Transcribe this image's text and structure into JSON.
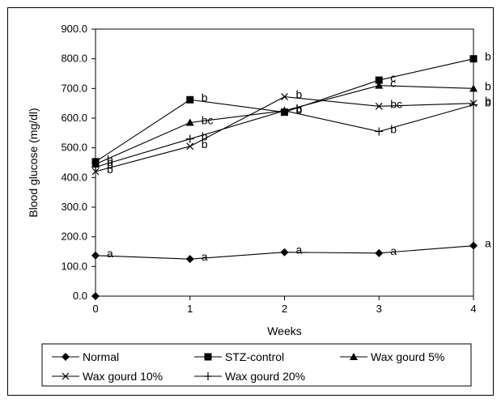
{
  "chart_data": {
    "type": "line",
    "title": "",
    "xlabel": "Weeks",
    "ylabel": "Blood glucose (mg/dl)",
    "xlim": [
      0,
      4
    ],
    "ylim": [
      0,
      900
    ],
    "x_ticks": [
      "0",
      "1",
      "2",
      "3",
      "4"
    ],
    "y_ticks": [
      "0.0",
      "100.0",
      "200.0",
      "300.0",
      "400.0",
      "500.0",
      "600.0",
      "700.0",
      "800.0",
      "900.0"
    ],
    "grid": false,
    "legend_position": "bottom",
    "x": [
      0,
      1,
      2,
      3,
      4
    ],
    "series": [
      {
        "name": "Normal",
        "marker": "diamond",
        "values": [
          137,
          125,
          148,
          145,
          170
        ],
        "extra_points": [
          {
            "x": 0,
            "y": 0
          }
        ],
        "labels": [
          "a",
          "a",
          "a",
          "a",
          "a"
        ]
      },
      {
        "name": "STZ-control",
        "marker": "square",
        "values": [
          453,
          662,
          620,
          728,
          800
        ],
        "labels": [
          "b",
          "b",
          "b",
          "c",
          "b"
        ]
      },
      {
        "name": "Wax gourd 5%",
        "marker": "triangle",
        "values": [
          445,
          585,
          625,
          710,
          700
        ],
        "labels": [
          "b",
          "bc",
          "b",
          "c",
          "b"
        ]
      },
      {
        "name": "Wax gourd 10%",
        "marker": "x",
        "values": [
          420,
          505,
          672,
          640,
          650
        ],
        "labels": [
          "b",
          "b",
          "b",
          "bc",
          "b"
        ]
      },
      {
        "name": "Wax gourd 20%",
        "marker": "plus",
        "values": [
          435,
          530,
          625,
          555,
          645
        ],
        "labels": [
          "b",
          "b",
          "b",
          "b",
          "b"
        ]
      }
    ]
  }
}
